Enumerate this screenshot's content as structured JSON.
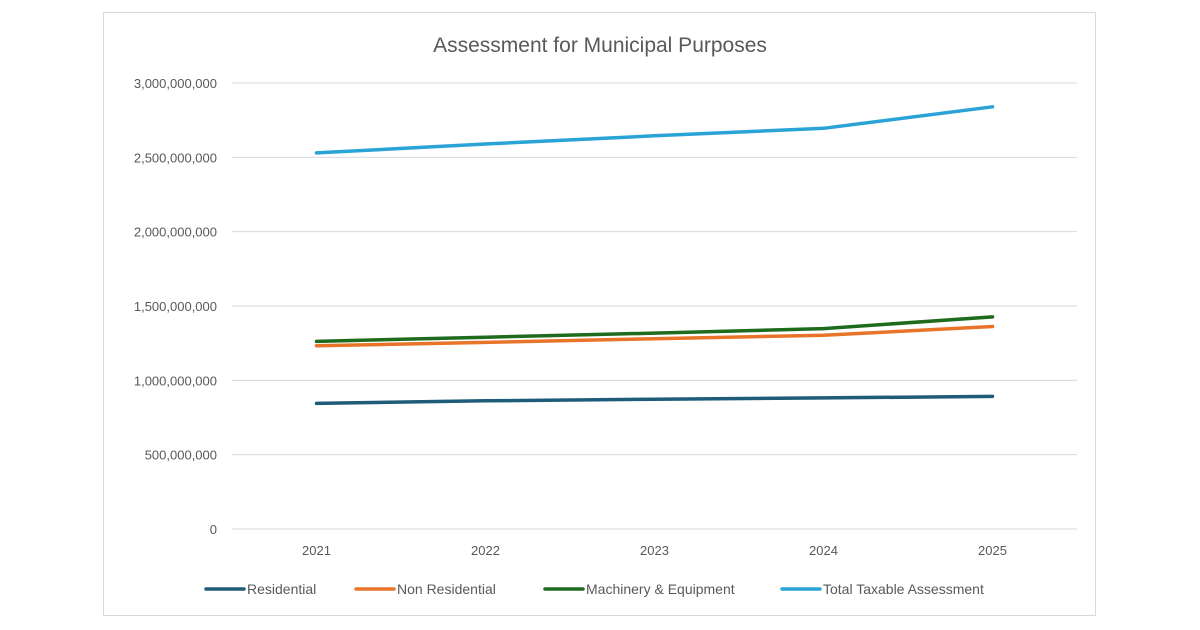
{
  "chart_data": {
    "type": "line",
    "title": "Assessment for Municipal Purposes",
    "xlabel": "",
    "ylabel": "",
    "x": [
      "2021",
      "2022",
      "2023",
      "2024",
      "2025"
    ],
    "ylim": [
      0,
      3000000000
    ],
    "yticks": [
      "0",
      "500,000,000",
      "1,000,000,000",
      "1,500,000,000",
      "2,000,000,000",
      "2,500,000,000",
      "3,000,000,000"
    ],
    "ytick_values": [
      0,
      500000000,
      1000000000,
      1500000000,
      2000000000,
      2500000000,
      3000000000
    ],
    "grid": true,
    "legend_position": "bottom",
    "series": [
      {
        "name": "Residential",
        "color": "#1f5c7a",
        "values": [
          845000000,
          862000000,
          873000000,
          882000000,
          892000000
        ]
      },
      {
        "name": "Non Residential",
        "color": "#e8742a",
        "values": [
          1232000000,
          1255000000,
          1280000000,
          1303000000,
          1362000000
        ]
      },
      {
        "name": "Machinery & Equipment",
        "color": "#1e6b1e",
        "values": [
          1262000000,
          1290000000,
          1318000000,
          1348000000,
          1427000000
        ]
      },
      {
        "name": "Total Taxable Assessment",
        "color": "#2aa3d6",
        "values": [
          2530000000,
          2590000000,
          2645000000,
          2695000000,
          2840000000
        ]
      }
    ]
  }
}
